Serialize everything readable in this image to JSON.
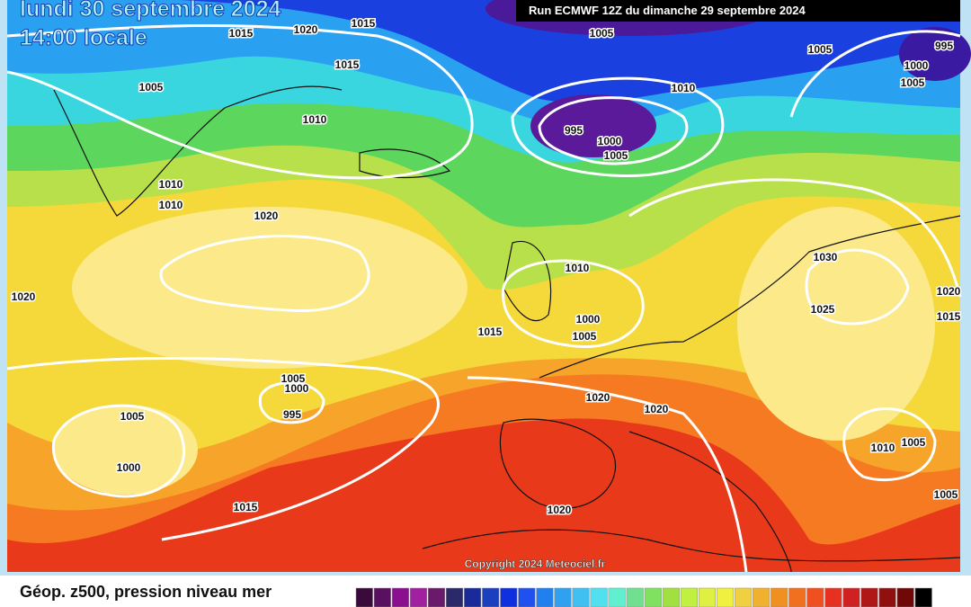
{
  "header": {
    "date": "lundi 30 septembre 2024",
    "time": "14:00 locale",
    "run": "Run ECMWF 12Z du dimanche 29 septembre 2024"
  },
  "isobar_labels": [
    "1015",
    "1020",
    "1015",
    "1015",
    "1005",
    "1010",
    "1005",
    "1005",
    "995",
    "1000",
    "1005",
    "1010",
    "995",
    "1000",
    "1005",
    "1010",
    "1010",
    "1020",
    "1020",
    "1030",
    "1010",
    "1000",
    "1005",
    "1015",
    "1025",
    "1020",
    "1015",
    "1005",
    "1000",
    "995",
    "1005",
    "1000",
    "1020",
    "1020",
    "1010",
    "1005",
    "1005",
    "1015",
    "1020"
  ],
  "copyright": "Copyright 2024 Meteociel.fr",
  "legend": {
    "title": "Géop. z500, pression niveau mer",
    "colors": [
      "#3a0a3a",
      "#5a1060",
      "#8a1090",
      "#a020a0",
      "#6a1a6a",
      "#2a2a6a",
      "#1a2a9a",
      "#1a40c0",
      "#1030e0",
      "#2050f0",
      "#2080f0",
      "#30a0f0",
      "#40c0f0",
      "#50e0f0",
      "#60f0d0",
      "#70e090",
      "#80e060",
      "#a0e040",
      "#c0f040",
      "#e0f040",
      "#f0f040",
      "#f0d040",
      "#f0b030",
      "#f09020",
      "#f07020",
      "#f05020",
      "#e83020",
      "#d02020",
      "#b01818",
      "#901010",
      "#700808",
      "#000000"
    ]
  }
}
